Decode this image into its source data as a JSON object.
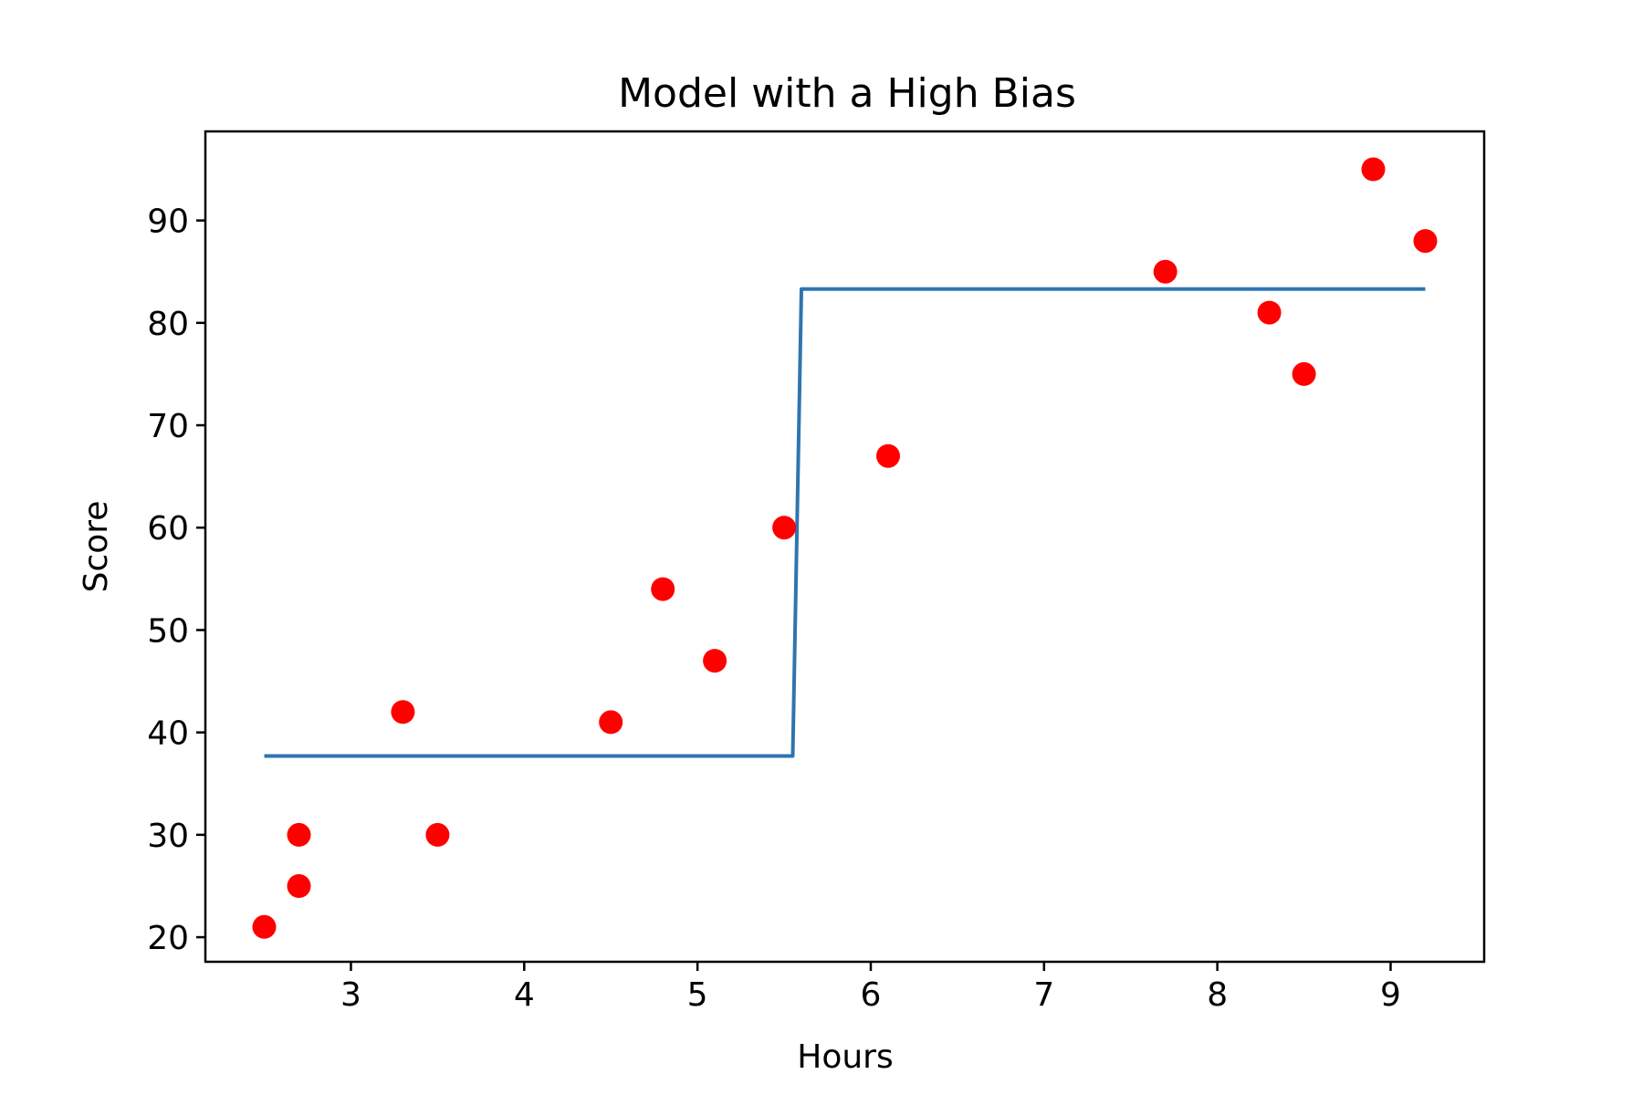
{
  "chart_data": {
    "type": "scatter",
    "title": "Model with a High Bias",
    "xlabel": "Hours",
    "ylabel": "Score",
    "xlim": [
      2.16,
      9.54
    ],
    "ylim": [
      17.6,
      98.7
    ],
    "xticks": [
      3,
      4,
      5,
      6,
      7,
      8,
      9
    ],
    "yticks": [
      20,
      30,
      40,
      50,
      60,
      70,
      80,
      90
    ],
    "grid": false,
    "legend": "none",
    "series": [
      {
        "type": "scatter",
        "color": "#ff0000",
        "x": [
          2.5,
          2.7,
          2.7,
          3.3,
          3.5,
          4.5,
          4.8,
          5.1,
          5.5,
          6.1,
          7.7,
          8.3,
          8.5,
          8.9,
          9.2
        ],
        "y": [
          21,
          30,
          25,
          42,
          30,
          41,
          54,
          47,
          60,
          67,
          85,
          81,
          75,
          95,
          88
        ]
      },
      {
        "type": "line",
        "color": "#2e75b0",
        "x": [
          2.5,
          5.55,
          5.6,
          9.2
        ],
        "y": [
          37.7,
          37.7,
          83.3,
          83.3
        ]
      }
    ]
  }
}
